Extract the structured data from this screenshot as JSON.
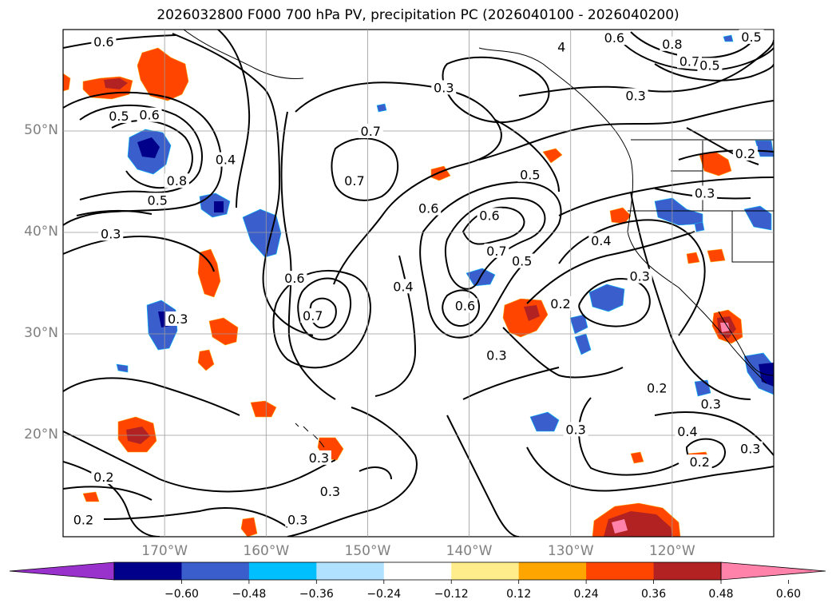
{
  "chart_data": {
    "type": "contour-map",
    "title": "2026032800 F000 700 hPa PV, precipitation PC (2026040100 - 2026040200)",
    "projection": "PlateCarree",
    "lon_range": [
      -180,
      -110
    ],
    "lat_range": [
      10,
      60
    ],
    "lat_ticks": [
      {
        "value": 20,
        "label": "20°N"
      },
      {
        "value": 30,
        "label": "30°N"
      },
      {
        "value": 40,
        "label": "40°N"
      },
      {
        "value": 50,
        "label": "50°N"
      }
    ],
    "lon_ticks": [
      {
        "value": -170,
        "label": "170°W"
      },
      {
        "value": -160,
        "label": "160°W"
      },
      {
        "value": -150,
        "label": "150°W"
      },
      {
        "value": -140,
        "label": "140°W"
      },
      {
        "value": -130,
        "label": "130°W"
      },
      {
        "value": -120,
        "label": "120°W"
      }
    ],
    "grid": true,
    "colorbar": {
      "orientation": "horizontal",
      "extend": "both",
      "levels": [
        -0.6,
        -0.48,
        -0.36,
        -0.24,
        -0.12,
        0.12,
        0.24,
        0.36,
        0.48,
        0.6
      ],
      "tick_labels": [
        "−0.60",
        "−0.48",
        "−0.36",
        "−0.24",
        "−0.12",
        "0.12",
        "0.24",
        "0.36",
        "0.48",
        "0.60"
      ],
      "colors": [
        "#9932cc",
        "#00008b",
        "#3a5fcd",
        "#00bfff",
        "#b0e2ff",
        "#ffffff",
        "#ffec8b",
        "#ffa500",
        "#ff4500",
        "#b22222",
        "#ff82ab"
      ]
    },
    "contour_labels": [
      {
        "text": "0.6",
        "lon": -176.0,
        "lat": 58.8
      },
      {
        "text": "0.5",
        "lon": -174.5,
        "lat": 51.5
      },
      {
        "text": "0.6",
        "lon": -171.5,
        "lat": 51.6
      },
      {
        "text": "0.8",
        "lon": -168.8,
        "lat": 45.1
      },
      {
        "text": "0.4",
        "lon": -164.0,
        "lat": 47.2
      },
      {
        "text": "0.5",
        "lon": -170.7,
        "lat": 43.2
      },
      {
        "text": "0.3",
        "lon": -175.3,
        "lat": 39.9
      },
      {
        "text": "0.7",
        "lon": -149.7,
        "lat": 50.0
      },
      {
        "text": "0.7",
        "lon": -151.3,
        "lat": 45.1
      },
      {
        "text": "0.3",
        "lon": -142.5,
        "lat": 54.3
      },
      {
        "text": "0.6",
        "lon": -144.0,
        "lat": 42.4
      },
      {
        "text": "0.5",
        "lon": -134.0,
        "lat": 45.7
      },
      {
        "text": "0.6",
        "lon": -138.0,
        "lat": 41.7
      },
      {
        "text": "0.7",
        "lon": -137.3,
        "lat": 38.2
      },
      {
        "text": "0.5",
        "lon": -134.8,
        "lat": 37.2
      },
      {
        "text": "0.4",
        "lon": -127.0,
        "lat": 39.2
      },
      {
        "text": "0.3",
        "lon": -123.6,
        "lat": 53.5
      },
      {
        "text": "4",
        "lon": -130.9,
        "lat": 58.3
      },
      {
        "text": "0.6",
        "lon": -125.7,
        "lat": 59.2
      },
      {
        "text": "0.8",
        "lon": -120.0,
        "lat": 58.6
      },
      {
        "text": "0.7",
        "lon": -118.3,
        "lat": 56.9
      },
      {
        "text": "0.5",
        "lon": -116.3,
        "lat": 56.5
      },
      {
        "text": "0.5",
        "lon": -112.2,
        "lat": 59.3
      },
      {
        "text": "0.2",
        "lon": -112.8,
        "lat": 47.8
      },
      {
        "text": "0.3",
        "lon": -116.8,
        "lat": 43.9
      },
      {
        "text": "0.3",
        "lon": -123.2,
        "lat": 35.7
      },
      {
        "text": "0.2",
        "lon": -131.0,
        "lat": 33.0
      },
      {
        "text": "0.3",
        "lon": -137.3,
        "lat": 27.9
      },
      {
        "text": "0.6",
        "lon": -140.4,
        "lat": 32.8
      },
      {
        "text": "0.3",
        "lon": -168.7,
        "lat": 31.5
      },
      {
        "text": "0.4",
        "lon": -146.5,
        "lat": 34.7
      },
      {
        "text": "0.6",
        "lon": -157.2,
        "lat": 35.5
      },
      {
        "text": "0.7",
        "lon": -155.4,
        "lat": 31.8
      },
      {
        "text": "0.3",
        "lon": -129.5,
        "lat": 20.6
      },
      {
        "text": "0.2",
        "lon": -121.5,
        "lat": 24.7
      },
      {
        "text": "0.3",
        "lon": -116.2,
        "lat": 23.1
      },
      {
        "text": "0.4",
        "lon": -118.5,
        "lat": 20.4
      },
      {
        "text": "0.2",
        "lon": -117.3,
        "lat": 17.4
      },
      {
        "text": "0.3",
        "lon": -112.3,
        "lat": 18.7
      },
      {
        "text": "0.3",
        "lon": -154.8,
        "lat": 17.8
      },
      {
        "text": "0.3",
        "lon": -153.7,
        "lat": 14.5
      },
      {
        "text": "0.3",
        "lon": -156.9,
        "lat": 11.7
      },
      {
        "text": "0.2",
        "lon": -176.0,
        "lat": 15.9
      },
      {
        "text": "0.2",
        "lon": -178.0,
        "lat": 11.7
      }
    ]
  }
}
